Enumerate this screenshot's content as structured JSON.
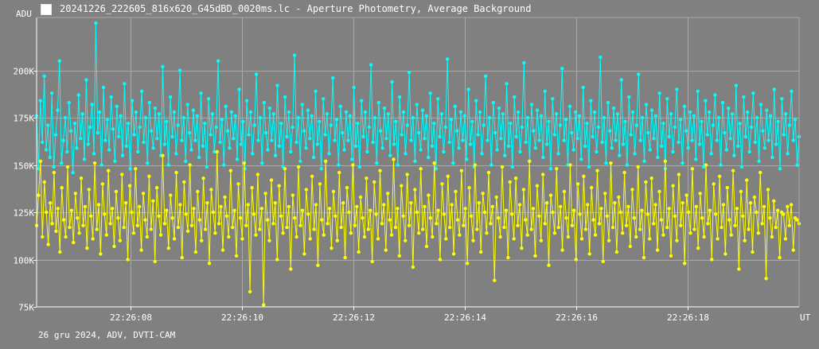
{
  "window": {
    "title": "20241226_222605_816x620_G45dBD_0020ms.lc - Aperture Photometry, Average Background",
    "footer": "26 gru 2024, ADV, DVTI-CAM"
  },
  "colors": {
    "background": "#808080",
    "grid": "#a8a8a8",
    "axis": "#ffffff",
    "series_cyan": "#00ffff",
    "series_yellow": "#ffff00"
  },
  "chart_data": {
    "type": "line",
    "ylabel": "ADU",
    "xlabel": "UT",
    "grid": true,
    "ylim": [
      75000,
      228000
    ],
    "xlim": [
      -1.69,
      12.0
    ],
    "y_ticks": [
      {
        "value": 75000,
        "label": "75K"
      },
      {
        "value": 100000,
        "label": "100K"
      },
      {
        "value": 125000,
        "label": "125K"
      },
      {
        "value": 150000,
        "label": "150K"
      },
      {
        "value": 175000,
        "label": "175K"
      },
      {
        "value": 200000,
        "label": "200K"
      }
    ],
    "x_ticks": [
      {
        "value": 0,
        "label": "22:26:08"
      },
      {
        "value": 2,
        "label": "22:26:10"
      },
      {
        "value": 4,
        "label": "22:26:12"
      },
      {
        "value": 6,
        "label": "22:26:14"
      },
      {
        "value": 8,
        "label": "22:26:16"
      },
      {
        "value": 10,
        "label": "22:26:18"
      }
    ],
    "series": [
      {
        "color": "#00ffff",
        "values": [
          176000,
          148000,
          184000,
          162000,
          197000,
          158000,
          171000,
          154000,
          188000,
          149000,
          166000,
          179000,
          205000,
          151000,
          163000,
          175000,
          157000,
          183000,
          168000,
          146000,
          172000,
          159000,
          187000,
          164000,
          177000,
          153000,
          195000,
          161000,
          170000,
          182000,
          156000,
          225000,
          167000,
          178000,
          150000,
          191000,
          163000,
          174000,
          158000,
          186000,
          169000,
          152000,
          181000,
          165000,
          176000,
          155000,
          193000,
          160000,
          172000,
          148000,
          184000,
          166000,
          178000,
          157000,
          170000,
          189000,
          162000,
          175000,
          151000,
          183000,
          168000,
          159000,
          180000,
          164000,
          177000,
          155000,
          202000,
          161000,
          173000,
          150000,
          186000,
          165000,
          178000,
          156000,
          171000,
          200000,
          163000,
          175000,
          152000,
          182000,
          167000,
          158000,
          179000,
          163000,
          176000,
          154000,
          188000,
          160000,
          172000,
          149000,
          185000,
          166000,
          177000,
          157000,
          170000,
          205000,
          162000,
          174000,
          150000,
          181000,
          168000,
          159000,
          178000,
          164000,
          176000,
          153000,
          190000,
          161000,
          173000,
          148000,
          184000,
          166000,
          178000,
          156000,
          171000,
          198000,
          163000,
          175000,
          151000,
          183000,
          167000,
          158000,
          180000,
          163000,
          177000,
          155000,
          192000,
          160000,
          172000,
          149000,
          186000,
          165000,
          178000,
          157000,
          170000,
          208000,
          162000,
          175000,
          152000,
          182000,
          168000,
          159000,
          179000,
          164000,
          176000,
          154000,
          189000,
          161000,
          173000,
          148000,
          185000,
          166000,
          177000,
          156000,
          171000,
          196000,
          163000,
          174000,
          150000,
          181000,
          167000,
          158000,
          178000,
          163000,
          176000,
          153000,
          191000,
          160000,
          172000,
          149000,
          184000,
          165000,
          178000,
          157000,
          170000,
          203000,
          162000,
          175000,
          151000,
          183000,
          168000,
          159000,
          180000,
          164000,
          177000,
          155000,
          194000,
          161000,
          173000,
          150000,
          186000,
          166000,
          178000,
          156000,
          171000,
          199000,
          163000,
          175000,
          152000,
          182000,
          167000,
          158000,
          179000,
          164000,
          176000,
          154000,
          188000,
          160000,
          172000,
          148000,
          185000,
          165000,
          177000,
          157000,
          170000,
          206000,
          162000,
          174000,
          151000,
          181000,
          168000,
          159000,
          178000,
          163000,
          176000,
          153000,
          190000,
          161000,
          173000,
          149000,
          184000,
          166000,
          178000,
          156000,
          171000,
          197000,
          163000,
          175000,
          150000,
          183000,
          167000,
          158000,
          180000,
          164000,
          177000,
          155000,
          193000,
          160000,
          172000,
          149000,
          186000,
          165000,
          178000,
          157000,
          170000,
          204000,
          162000,
          175000,
          152000,
          182000,
          168000,
          159000,
          179000,
          163000,
          176000,
          154000,
          189000,
          161000,
          173000,
          148000,
          185000,
          166000,
          177000,
          156000,
          171000,
          201000,
          163000,
          174000,
          150000,
          181000,
          167000,
          158000,
          178000,
          164000,
          176000,
          153000,
          191000,
          160000,
          172000,
          149000,
          184000,
          165000,
          178000,
          157000,
          170000,
          207000,
          162000,
          175000,
          151000,
          183000,
          168000,
          159000,
          180000,
          163000,
          177000,
          155000,
          195000,
          161000,
          173000,
          150000,
          186000,
          166000,
          178000,
          156000,
          171000,
          198000,
          163000,
          175000,
          152000,
          182000,
          167000,
          158000,
          179000,
          164000,
          176000,
          154000,
          188000,
          160000,
          172000,
          148000,
          185000,
          165000,
          177000,
          157000,
          170000,
          190000,
          162000,
          174000,
          151000,
          181000,
          168000,
          159000,
          178000,
          163000,
          176000,
          153000,
          189000,
          161000,
          173000,
          149000,
          184000,
          166000,
          178000,
          156000,
          171000,
          187000,
          163000,
          175000,
          150000,
          183000,
          167000,
          158000,
          180000,
          164000,
          177000,
          155000,
          192000,
          160000,
          172000,
          149000,
          186000,
          165000,
          178000,
          157000,
          170000,
          188000,
          162000,
          175000,
          152000,
          182000,
          168000,
          159000,
          179000,
          163000,
          176000,
          154000,
          190000,
          161000,
          173000,
          148000,
          185000,
          166000,
          177000,
          156000,
          171000,
          189000,
          163000,
          174000,
          150000,
          165000
        ]
      },
      {
        "color": "#ffff00",
        "values": [
          118000,
          134000,
          152000,
          112000,
          141000,
          125000,
          108000,
          130000,
          119000,
          146000,
          115000,
          127000,
          104000,
          138000,
          121000,
          112000,
          149000,
          117000,
          126000,
          109000,
          135000,
          122000,
          114000,
          143000,
          118000,
          128000,
          106000,
          137000,
          123000,
          111000,
          151000,
          116000,
          129000,
          103000,
          140000,
          124000,
          113000,
          147000,
          119000,
          127000,
          107000,
          136000,
          122000,
          110000,
          145000,
          117000,
          130000,
          100000,
          139000,
          125000,
          114000,
          148000,
          118000,
          128000,
          105000,
          135000,
          121000,
          112000,
          144000,
          116000,
          131000,
          99000,
          138000,
          123000,
          113000,
          155000,
          119000,
          126000,
          106000,
          134000,
          122000,
          111000,
          146000,
          117000,
          129000,
          101000,
          141000,
          124000,
          115000,
          150000,
          118000,
          127000,
          104000,
          136000,
          121000,
          110000,
          143000,
          116000,
          130000,
          98000,
          137000,
          125000,
          114000,
          157000,
          119000,
          128000,
          105000,
          133000,
          123000,
          112000,
          147000,
          117000,
          126000,
          102000,
          140000,
          122000,
          111000,
          151000,
          118000,
          129000,
          83000,
          138000,
          124000,
          113000,
          145000,
          116000,
          127000,
          76000,
          135000,
          121000,
          110000,
          142000,
          119000,
          130000,
          100000,
          139000,
          123000,
          114000,
          148000,
          117000,
          128000,
          95000,
          134000,
          122000,
          112000,
          149000,
          118000,
          126000,
          103000,
          137000,
          124000,
          111000,
          144000,
          116000,
          129000,
          97000,
          140000,
          121000,
          113000,
          152000,
          119000,
          127000,
          106000,
          136000,
          123000,
          110000,
          146000,
          117000,
          130000,
          101000,
          138000,
          125000,
          114000,
          150000,
          118000,
          128000,
          104000,
          133000,
          122000,
          112000,
          143000,
          116000,
          126000,
          99000,
          141000,
          124000,
          111000,
          147000,
          119000,
          129000,
          105000,
          135000,
          121000,
          113000,
          153000,
          117000,
          127000,
          102000,
          139000,
          123000,
          110000,
          145000,
          118000,
          130000,
          96000,
          137000,
          125000,
          114000,
          148000,
          116000,
          128000,
          107000,
          134000,
          122000,
          112000,
          151000,
          119000,
          126000,
          100000,
          140000,
          124000,
          111000,
          144000,
          117000,
          129000,
          103000,
          136000,
          121000,
          113000,
          147000,
          118000,
          127000,
          98000,
          138000,
          123000,
          110000,
          150000,
          116000,
          130000,
          104000,
          135000,
          125000,
          114000,
          146000,
          119000,
          128000,
          89000,
          133000,
          122000,
          112000,
          149000,
          117000,
          126000,
          101000,
          141000,
          124000,
          111000,
          143000,
          118000,
          129000,
          106000,
          137000,
          121000,
          113000,
          152000,
          116000,
          127000,
          102000,
          139000,
          123000,
          110000,
          145000,
          119000,
          130000,
          97000,
          134000,
          125000,
          114000,
          148000,
          117000,
          128000,
          105000,
          136000,
          122000,
          112000,
          150000,
          118000,
          126000,
          100000,
          140000,
          124000,
          111000,
          144000,
          116000,
          129000,
          103000,
          138000,
          121000,
          113000,
          147000,
          119000,
          127000,
          99000,
          135000,
          123000,
          110000,
          151000,
          117000,
          130000,
          104000,
          133000,
          125000,
          114000,
          146000,
          118000,
          128000,
          107000,
          137000,
          122000,
          112000,
          149000,
          116000,
          126000,
          101000,
          141000,
          124000,
          111000,
          143000,
          119000,
          129000,
          105000,
          136000,
          121000,
          113000,
          152000,
          117000,
          127000,
          102000,
          139000,
          123000,
          110000,
          145000,
          118000,
          130000,
          98000,
          134000,
          125000,
          114000,
          148000,
          116000,
          128000,
          106000,
          135000,
          122000,
          112000,
          150000,
          119000,
          126000,
          100000,
          140000,
          124000,
          111000,
          144000,
          117000,
          129000,
          103000,
          138000,
          121000,
          113000,
          147000,
          118000,
          127000,
          95000,
          136000,
          123000,
          110000,
          142000,
          116000,
          130000,
          104000,
          133000,
          125000,
          114000,
          146000,
          119000,
          128000,
          90000,
          137000,
          122000,
          112000,
          131000,
          117000,
          126000,
          101000,
          125000,
          124000,
          111000,
          128000,
          118000,
          129000,
          105000,
          122000,
          121000,
          119000
        ]
      }
    ]
  }
}
